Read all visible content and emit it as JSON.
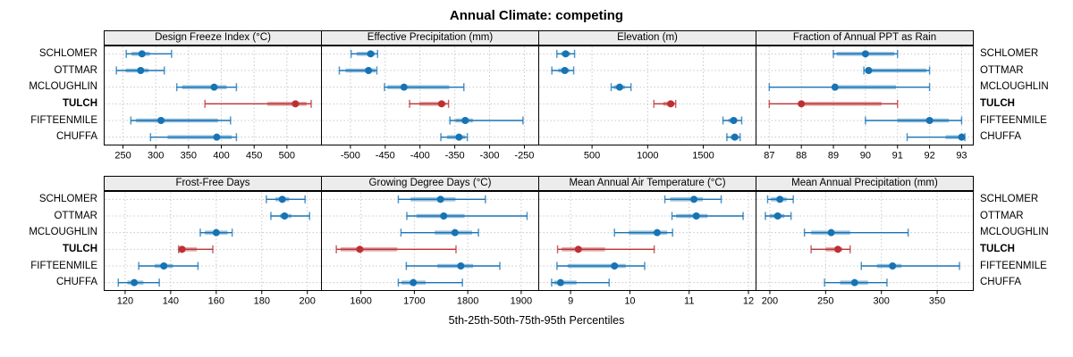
{
  "title": "Annual Climate: competing",
  "x_axis_caption": "5th-25th-50th-75th-95th Percentiles",
  "sites": [
    "SCHLOMER",
    "OTTMAR",
    "MCLOUGHLIN",
    "TULCH",
    "FIFTEENMILE",
    "CHUFFA"
  ],
  "highlight_site": "TULCH",
  "colors": {
    "series": "#1673B4",
    "highlight": "#BC3034",
    "grid": "#c9c9c9",
    "strip_bg": "#ececec",
    "border": "#000000"
  },
  "chart_data": {
    "type": "dotplot-percentiles",
    "percentile_labels": [
      "5th",
      "25th",
      "50th",
      "75th",
      "95th"
    ],
    "legend_position": "none",
    "grid": "dashed",
    "layout": "2 rows x 4 columns, site labels on left and right of each row",
    "panels": [
      {
        "title": "Design Freeze Index (°C)",
        "domain": [
          222,
          552
        ],
        "ticks": [
          250,
          300,
          350,
          400,
          450,
          500
        ],
        "values": {
          "SCHLOMER": [
            255,
            263,
            279,
            291,
            324
          ],
          "OTTMAR": [
            240,
            254,
            277,
            289,
            313
          ],
          "MCLOUGHLIN": [
            332,
            340,
            389,
            408,
            423
          ],
          "TULCH": [
            375,
            470,
            513,
            530,
            537
          ],
          "FIFTEENMILE": [
            262,
            270,
            308,
            395,
            414
          ],
          "CHUFFA": [
            292,
            318,
            393,
            416,
            423
          ]
        }
      },
      {
        "title": "Effective Precipitation (mm)",
        "domain": [
          -541,
          -230
        ],
        "ticks": [
          -500,
          -450,
          -400,
          -350,
          -300,
          -250
        ],
        "values": {
          "SCHLOMER": [
            -499,
            -491,
            -471,
            -465,
            -461
          ],
          "OTTMAR": [
            -516,
            -507,
            -474,
            -464,
            -462
          ],
          "MCLOUGHLIN": [
            -451,
            -447,
            -423,
            -358,
            -337
          ],
          "TULCH": [
            -415,
            -401,
            -369,
            -363,
            -359
          ],
          "FIFTEENMILE": [
            -357,
            -349,
            -335,
            -324,
            -252
          ],
          "CHUFFA": [
            -370,
            -361,
            -344,
            -335,
            -332
          ]
        }
      },
      {
        "title": "Elevation (m)",
        "domain": [
          25,
          1970
        ],
        "ticks": [
          500,
          1000,
          1500
        ],
        "values": {
          "SCHLOMER": [
            184,
            223,
            263,
            303,
            343
          ],
          "OTTMAR": [
            139,
            197,
            255,
            295,
            335
          ],
          "MCLOUGHLIN": [
            672,
            695,
            748,
            795,
            850
          ],
          "TULCH": [
            1056,
            1140,
            1207,
            1241,
            1252
          ],
          "FIFTEENMILE": [
            1677,
            1725,
            1773,
            1805,
            1845
          ],
          "CHUFFA": [
            1712,
            1746,
            1783,
            1818,
            1831
          ]
        }
      },
      {
        "title": "Fraction of Annual PPT as Rain",
        "domain": [
          86.6,
          93.35
        ],
        "ticks": [
          87,
          88,
          89,
          90,
          91,
          92,
          93
        ],
        "values": {
          "SCHLOMER": [
            89,
            89.1,
            90,
            90.9,
            91
          ],
          "OTTMAR": [
            89.95,
            90,
            90.1,
            91.9,
            92
          ],
          "MCLOUGHLIN": [
            87,
            89,
            89.05,
            90.95,
            92
          ],
          "TULCH": [
            87,
            87.9,
            88,
            90.5,
            91
          ],
          "FIFTEENMILE": [
            90,
            91,
            92,
            92.6,
            93
          ],
          "CHUFFA": [
            91.3,
            92.5,
            93,
            93.02,
            93.1
          ]
        }
      },
      {
        "title": "Frost-Free Days",
        "domain": [
          111,
          206
        ],
        "ticks": [
          120,
          140,
          160,
          180,
          200
        ],
        "values": {
          "SCHLOMER": [
            182,
            186,
            189,
            192,
            199
          ],
          "OTTMAR": [
            184,
            188,
            190,
            193,
            201
          ],
          "MCLOUGHLIN": [
            153,
            155,
            160,
            165,
            167
          ],
          "TULCH": [
            143.5,
            144.5,
            145,
            151.5,
            158.5
          ],
          "FIFTEENMILE": [
            126,
            133,
            137,
            141,
            152
          ],
          "CHUFFA": [
            117,
            121,
            124,
            128,
            135
          ]
        }
      },
      {
        "title": "Growing Degree Days (°C)",
        "domain": [
          1527,
          1932
        ],
        "ticks": [
          1600,
          1700,
          1800,
          1900
        ],
        "values": {
          "SCHLOMER": [
            1670,
            1693,
            1749,
            1777,
            1833
          ],
          "OTTMAR": [
            1686,
            1704,
            1755,
            1794,
            1911
          ],
          "MCLOUGHLIN": [
            1675,
            1738,
            1776,
            1808,
            1820
          ],
          "TULCH": [
            1554,
            1562,
            1598,
            1668,
            1778
          ],
          "FIFTEENMILE": [
            1685,
            1743,
            1787,
            1810,
            1860
          ],
          "CHUFFA": [
            1670,
            1676,
            1698,
            1721,
            1790
          ]
        }
      },
      {
        "title": "Mean Annual Air Temperature (°C)",
        "domain": [
          8.47,
          12.12
        ],
        "ticks": [
          9,
          10,
          11,
          12
        ],
        "values": {
          "SCHLOMER": [
            10.59,
            10.68,
            11.08,
            11.23,
            11.54
          ],
          "OTTMAR": [
            10.71,
            10.78,
            11.12,
            11.31,
            11.91
          ],
          "MCLOUGHLIN": [
            9.74,
            9.98,
            10.46,
            10.63,
            10.72
          ],
          "TULCH": [
            8.78,
            8.85,
            9.13,
            9.58,
            10.41
          ],
          "FIFTEENMILE": [
            8.77,
            8.95,
            9.74,
            9.93,
            10.25
          ],
          "CHUFFA": [
            8.68,
            8.72,
            8.83,
            9.1,
            9.65
          ]
        }
      },
      {
        "title": "Mean Annual Precipitation (mm)",
        "domain": [
          188,
          382
        ],
        "ticks": [
          200,
          250,
          300,
          350
        ],
        "values": {
          "SCHLOMER": [
            198,
            201,
            209,
            215,
            221
          ],
          "OTTMAR": [
            196,
            200,
            207,
            213,
            219
          ],
          "MCLOUGHLIN": [
            231,
            237,
            255,
            272,
            324
          ],
          "TULCH": [
            237,
            250,
            261,
            265,
            272
          ],
          "FIFTEENMILE": [
            282,
            296,
            310,
            318,
            370
          ],
          "CHUFFA": [
            249,
            263,
            276,
            288,
            305
          ]
        }
      }
    ]
  }
}
